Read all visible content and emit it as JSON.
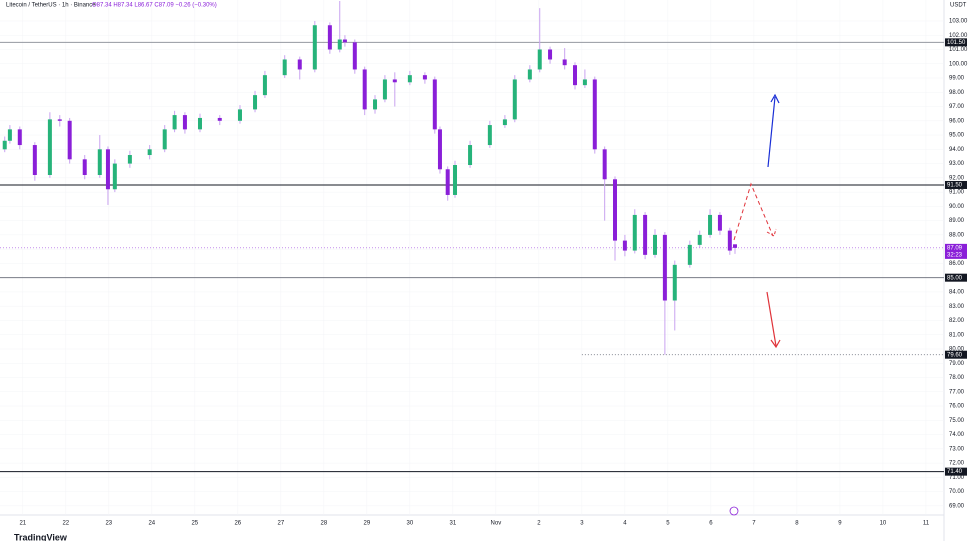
{
  "chart_data": {
    "type": "candlestick",
    "title": "Litecoin / TetherUS · 1h · Binance",
    "ohlc_legend": "O87.34 H87.34 L86.67 C87.09 −0.26 (−0.30%)",
    "currency": "USDT",
    "brand": "TradingView",
    "countdown": "32:23",
    "up_color": "#26b37a",
    "down_color": "#8a1fd8",
    "wick_color": "#c9a3f0",
    "xlim": [
      -0.53,
      21.42
    ],
    "ylim": [
      68.36,
      104.47
    ],
    "xticks": [
      {
        "value": 0,
        "label": "21"
      },
      {
        "value": 1,
        "label": "22"
      },
      {
        "value": 2,
        "label": "23"
      },
      {
        "value": 3,
        "label": "24"
      },
      {
        "value": 4,
        "label": "25"
      },
      {
        "value": 5,
        "label": "26"
      },
      {
        "value": 6,
        "label": "27"
      },
      {
        "value": 7,
        "label": "28"
      },
      {
        "value": 8,
        "label": "29"
      },
      {
        "value": 9,
        "label": "30"
      },
      {
        "value": 10,
        "label": "31"
      },
      {
        "value": 11,
        "label": "Nov"
      },
      {
        "value": 12,
        "label": "2"
      },
      {
        "value": 13,
        "label": "3"
      },
      {
        "value": 14,
        "label": "4"
      },
      {
        "value": 15,
        "label": "5"
      },
      {
        "value": 16,
        "label": "6"
      },
      {
        "value": 17,
        "label": "7"
      },
      {
        "value": 18,
        "label": "8"
      },
      {
        "value": 19,
        "label": "9"
      },
      {
        "value": 20,
        "label": "10"
      },
      {
        "value": 21,
        "label": "11"
      }
    ],
    "yticks": [
      {
        "value": 69,
        "label": "69.00"
      },
      {
        "value": 70,
        "label": "70.00"
      },
      {
        "value": 71,
        "label": "71.00"
      },
      {
        "value": 72,
        "label": "72.00"
      },
      {
        "value": 73,
        "label": "73.00"
      },
      {
        "value": 74,
        "label": "74.00"
      },
      {
        "value": 75,
        "label": "75.00"
      },
      {
        "value": 76,
        "label": "76.00"
      },
      {
        "value": 77,
        "label": "77.00"
      },
      {
        "value": 78,
        "label": "78.00"
      },
      {
        "value": 79,
        "label": "79.00"
      },
      {
        "value": 80,
        "label": "80.00"
      },
      {
        "value": 81,
        "label": "81.00"
      },
      {
        "value": 82,
        "label": "82.00"
      },
      {
        "value": 83,
        "label": "83.00"
      },
      {
        "value": 84,
        "label": "84.00"
      },
      {
        "value": 85,
        "label": "85.00"
      },
      {
        "value": 86,
        "label": "86.00"
      },
      {
        "value": 87,
        "label": "87.00"
      },
      {
        "value": 88,
        "label": "88.00"
      },
      {
        "value": 89,
        "label": "89.00"
      },
      {
        "value": 90,
        "label": "90.00"
      },
      {
        "value": 91,
        "label": "91.00"
      },
      {
        "value": 92,
        "label": "92.00"
      },
      {
        "value": 93,
        "label": "93.00"
      },
      {
        "value": 94,
        "label": "94.00"
      },
      {
        "value": 95,
        "label": "95.00"
      },
      {
        "value": 96,
        "label": "96.00"
      },
      {
        "value": 97,
        "label": "97.00"
      },
      {
        "value": 98,
        "label": "98.00"
      },
      {
        "value": 99,
        "label": "99.00"
      },
      {
        "value": 100,
        "label": "100.00"
      },
      {
        "value": 101,
        "label": "101.00"
      },
      {
        "value": 102,
        "label": "102.00"
      },
      {
        "value": 103,
        "label": "103.00"
      }
    ],
    "levels": [
      {
        "value": 101.5,
        "label": "101.50",
        "color": "#9598a1"
      },
      {
        "value": 91.5,
        "label": "91.50",
        "color": "#131722"
      },
      {
        "value": 85,
        "label": "85.00",
        "color": "#787b86"
      },
      {
        "value": 71.4,
        "label": "71.40",
        "color": "#131722"
      }
    ],
    "dotted_level": {
      "value": 79.6,
      "label": "79.60",
      "start": 13.0
    },
    "last_price": {
      "value": 87.09,
      "label": "87.09",
      "color": "#8a1fd8"
    },
    "x": [
      -0.42,
      -0.3,
      -0.07,
      0.28,
      0.63,
      0.86,
      1.09,
      1.44,
      1.79,
      1.98,
      2.14,
      2.49,
      2.95,
      3.3,
      3.53,
      3.77,
      4.12,
      4.58,
      5.05,
      5.4,
      5.63,
      6.09,
      6.44,
      6.79,
      7.14,
      7.37,
      7.49,
      7.72,
      7.95,
      8.19,
      8.42,
      8.65,
      9.0,
      9.35,
      9.58,
      9.7,
      9.88,
      10.05,
      10.4,
      10.86,
      11.21,
      11.44,
      11.79,
      12.02,
      12.26,
      12.6,
      12.84,
      13.07,
      13.3,
      13.53,
      13.77,
      14.0,
      14.23,
      14.47,
      14.7,
      14.93,
      15.16,
      15.51,
      15.74,
      15.98,
      16.21,
      16.44,
      16.56
    ],
    "open": [
      94.0,
      94.6,
      95.4,
      94.3,
      92.2,
      96.1,
      96.0,
      93.3,
      92.2,
      94.0,
      91.2,
      93.0,
      93.6,
      94.0,
      95.4,
      96.4,
      95.4,
      96.2,
      96.0,
      96.8,
      97.8,
      99.2,
      100.3,
      99.6,
      102.7,
      101.0,
      101.7,
      101.5,
      99.6,
      96.8,
      97.5,
      98.9,
      98.7,
      99.2,
      98.9,
      95.4,
      92.6,
      90.8,
      92.9,
      94.3,
      95.7,
      96.1,
      98.9,
      99.6,
      101.0,
      100.3,
      99.9,
      98.5,
      98.9,
      94.0,
      91.9,
      87.6,
      86.9,
      89.4,
      86.6,
      88.0,
      83.4,
      85.9,
      87.3,
      88.0,
      89.4,
      88.3,
      87.34
    ],
    "high": [
      94.9,
      95.7,
      95.6,
      94.5,
      96.6,
      96.4,
      96.2,
      93.6,
      95.0,
      94.2,
      93.3,
      93.9,
      94.3,
      95.7,
      96.7,
      96.6,
      96.5,
      96.4,
      97.1,
      98.1,
      99.5,
      100.6,
      100.5,
      103.0,
      102.9,
      104.4,
      102.0,
      101.7,
      99.8,
      97.8,
      99.2,
      99.4,
      99.5,
      99.4,
      99.1,
      95.6,
      92.8,
      93.2,
      94.6,
      96.0,
      96.4,
      99.2,
      99.9,
      103.9,
      101.2,
      101.1,
      100.1,
      99.6,
      99.1,
      94.2,
      92.1,
      88.0,
      89.8,
      89.6,
      88.4,
      88.2,
      86.2,
      87.6,
      88.3,
      89.8,
      89.6,
      88.5,
      87.34
    ],
    "low": [
      93.8,
      94.4,
      94.0,
      91.8,
      92.0,
      95.6,
      93.0,
      91.9,
      92.0,
      90.1,
      91.0,
      92.7,
      93.3,
      93.8,
      95.2,
      95.1,
      95.2,
      95.7,
      95.8,
      96.6,
      97.6,
      99.0,
      98.9,
      99.4,
      100.7,
      100.8,
      101.2,
      99.3,
      96.4,
      96.5,
      97.3,
      97.0,
      98.5,
      98.6,
      95.1,
      92.3,
      90.4,
      90.6,
      92.7,
      94.1,
      95.5,
      95.9,
      98.7,
      99.4,
      100.0,
      99.6,
      98.2,
      98.3,
      93.7,
      89.0,
      86.2,
      86.5,
      86.7,
      86.3,
      86.4,
      79.6,
      81.3,
      85.7,
      87.1,
      87.8,
      88.0,
      86.6,
      86.67
    ],
    "close": [
      94.6,
      95.4,
      94.3,
      92.2,
      96.1,
      96.0,
      93.3,
      92.2,
      94.0,
      91.2,
      93.0,
      93.6,
      94.0,
      95.4,
      96.4,
      95.4,
      96.2,
      96.0,
      96.8,
      97.8,
      99.2,
      100.3,
      99.6,
      102.7,
      101.0,
      101.7,
      101.5,
      99.6,
      96.8,
      97.5,
      98.9,
      98.7,
      99.2,
      98.9,
      95.4,
      92.6,
      90.8,
      92.9,
      94.3,
      95.7,
      96.1,
      98.9,
      99.6,
      101.0,
      100.3,
      99.9,
      98.5,
      98.9,
      94.0,
      91.9,
      87.6,
      86.9,
      89.4,
      86.6,
      88.0,
      83.4,
      85.9,
      87.3,
      88.0,
      89.4,
      88.3,
      86.9,
      87.09
    ]
  }
}
